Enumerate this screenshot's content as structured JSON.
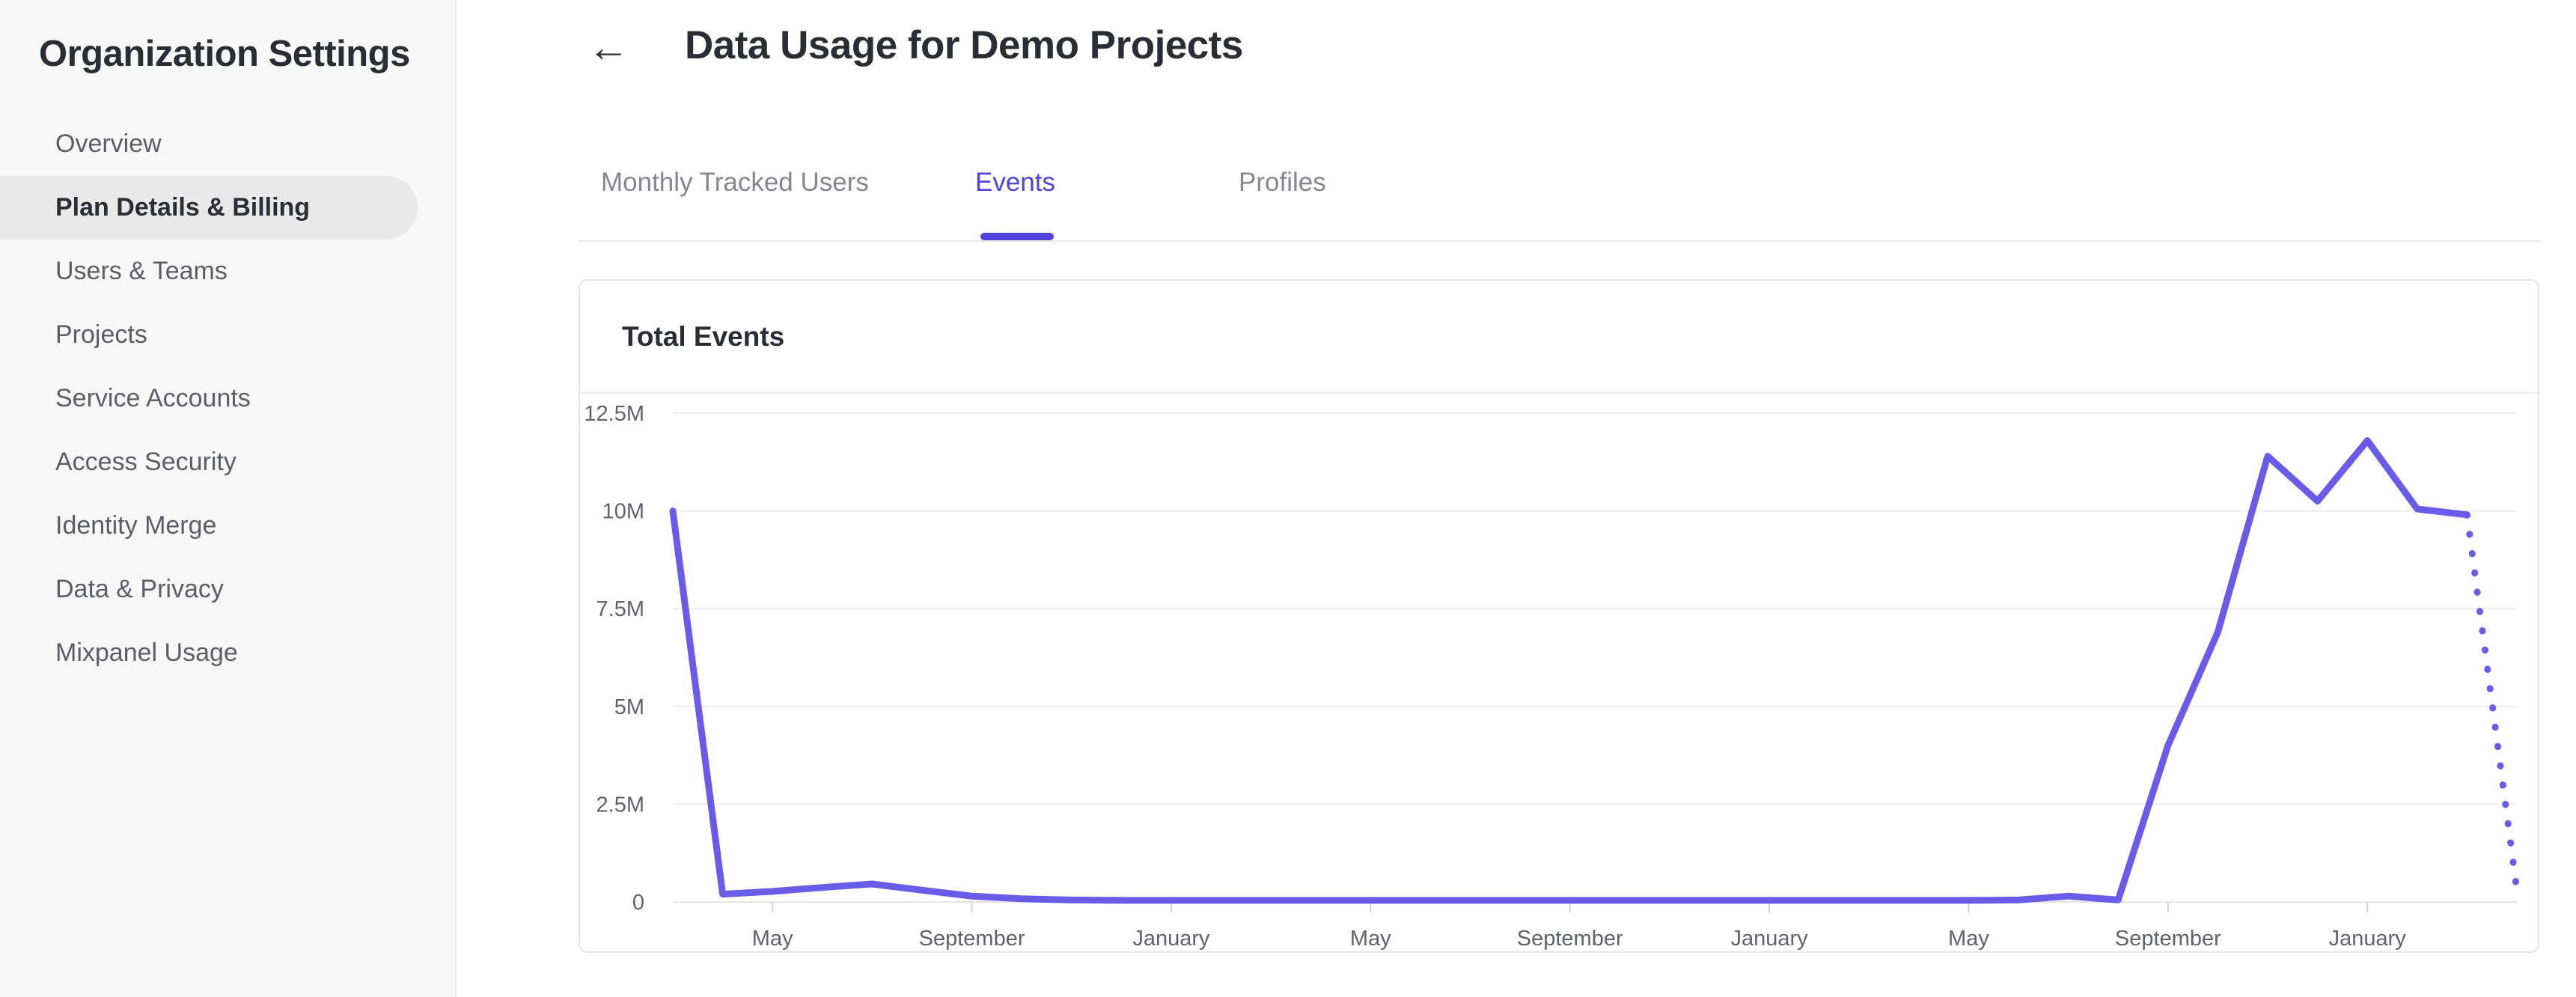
{
  "sidebar": {
    "title": "Organization Settings",
    "items": [
      {
        "label": "Overview",
        "selected": false
      },
      {
        "label": "Plan Details & Billing",
        "selected": true
      },
      {
        "label": "Users & Teams",
        "selected": false
      },
      {
        "label": "Projects",
        "selected": false
      },
      {
        "label": "Service Accounts",
        "selected": false
      },
      {
        "label": "Access Security",
        "selected": false
      },
      {
        "label": "Identity Merge",
        "selected": false
      },
      {
        "label": "Data & Privacy",
        "selected": false
      },
      {
        "label": "Mixpanel Usage",
        "selected": false
      }
    ]
  },
  "header": {
    "back_label": "←",
    "title": "Data Usage for Demo Projects"
  },
  "tabs": [
    {
      "label": "Monthly Tracked Users",
      "active": false
    },
    {
      "label": "Events",
      "active": true
    },
    {
      "label": "Profiles",
      "active": false
    }
  ],
  "card": {
    "title": "Total Events"
  },
  "colors": {
    "accent": "#5044DD",
    "line": "#6A5CE8",
    "sidebar_bg": "#F8F8F8",
    "selected_item_bg": "#E9E9E9",
    "text_dark": "#2C2C34",
    "text_gray": "#5D5D66",
    "tab_inactive": "#86868F",
    "grid": "#EDEDEE",
    "axis": "#E3E3E6",
    "tick": "#D3D3D7",
    "axis_label": "#62626B",
    "card_border": "#E4E4E7"
  },
  "chart_data": {
    "type": "line",
    "title": "Total Events",
    "unit": "events",
    "legend": "none",
    "grid": "horizontal-only",
    "y_axis": {
      "min_millions": 0,
      "max_millions": 12.5,
      "tick_values_millions": [
        0,
        2.5,
        5,
        7.5,
        10,
        12.5
      ],
      "tick_labels": [
        "0",
        "2.5M",
        "5M",
        "7.5M",
        "10M",
        "12.5M"
      ]
    },
    "x_axis": {
      "tick_labels": [
        "May",
        "September",
        "January",
        "May",
        "September",
        "January",
        "May",
        "September",
        "January"
      ],
      "months_between_ticks": 4,
      "first_tick_point_index": 2
    },
    "series": [
      {
        "name": "Total Events",
        "cadence": "monthly",
        "values_millions": [
          10,
          0.2,
          0.27,
          0.37,
          0.46,
          0.3,
          0.15,
          0.08,
          0.05,
          0.04,
          0.04,
          0.04,
          0.04,
          0.04,
          0.04,
          0.04,
          0.04,
          0.04,
          0.04,
          0.04,
          0.04,
          0.04,
          0.04,
          0.04,
          0.04,
          0.04,
          0.04,
          0.05,
          0.15,
          0.05,
          4.0,
          6.9,
          11.4,
          10.25,
          11.8,
          10.05,
          9.9
        ],
        "projected_value_millions": 0.3,
        "projected_style": "dotted"
      }
    ]
  }
}
